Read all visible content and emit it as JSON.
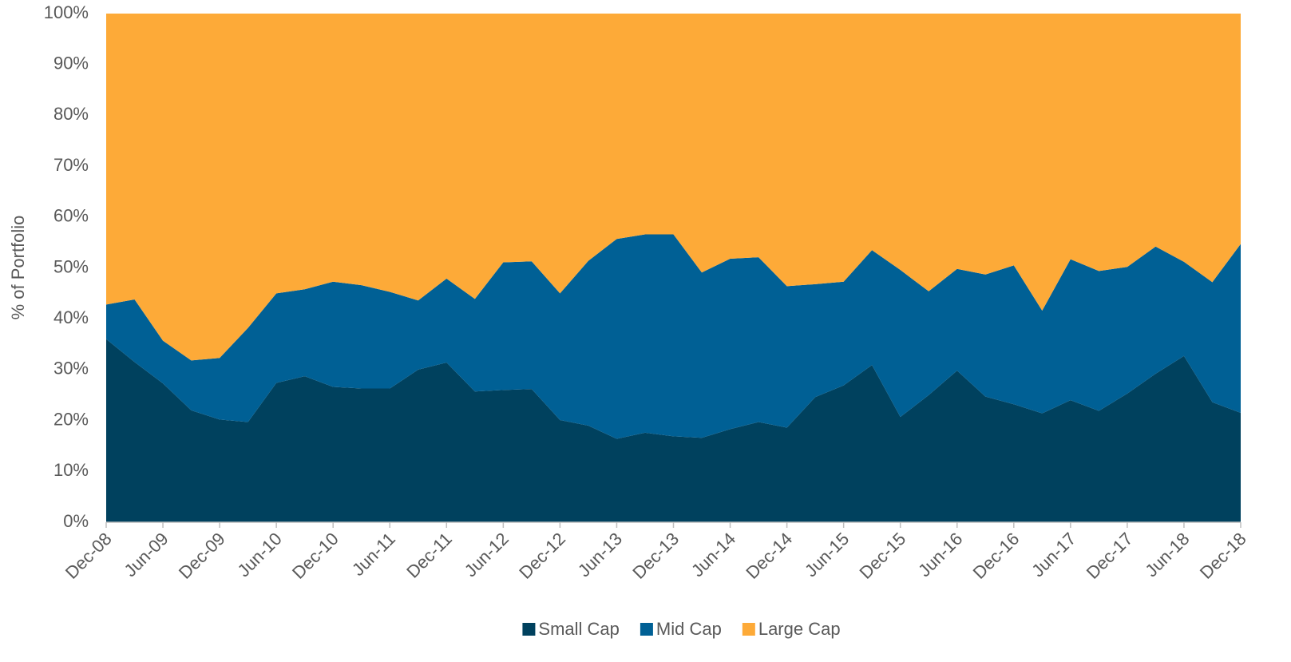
{
  "chart_data": {
    "type": "stacked_area",
    "y_axis_label": "% of Portfolio",
    "categories": [
      "Dec-08",
      null,
      "Jun-09",
      null,
      "Dec-09",
      null,
      "Jun-10",
      null,
      "Dec-10",
      null,
      "Jun-11",
      null,
      "Dec-11",
      null,
      "Jun-12",
      null,
      "Dec-12",
      null,
      "Jun-13",
      null,
      "Dec-13",
      null,
      "Jun-14",
      null,
      "Dec-14",
      null,
      "Jun-15",
      null,
      "Dec-15",
      null,
      "Jun-16",
      null,
      "Dec-16",
      null,
      "Jun-17",
      null,
      "Dec-17",
      null,
      "Jun-18",
      null,
      "Dec-18"
    ],
    "series": [
      {
        "name": "Small Cap",
        "color": "#00415e",
        "values": [
          36,
          31.5,
          27.3,
          22,
          20.2,
          19.7,
          27.4,
          28.7,
          26.6,
          26.3,
          26.3,
          30,
          31.4,
          25.7,
          26,
          26.2,
          20.1,
          19,
          16.4,
          17.6,
          16.9,
          16.6,
          18.3,
          19.7,
          18.6,
          24.6,
          26.9,
          30.9,
          20.7,
          25,
          29.8,
          24.7,
          23.2,
          21.4,
          24,
          21.9,
          25.3,
          29.2,
          32.7,
          23.6,
          21.5
        ]
      },
      {
        "name": "Mid Cap",
        "color": "#006095",
        "values": [
          6.8,
          12.3,
          8.4,
          9.8,
          12.1,
          18.5,
          17.6,
          17.1,
          20.7,
          20.3,
          19,
          13.6,
          16.5,
          18.2,
          25.1,
          25.1,
          24.9,
          32.4,
          39.3,
          39,
          39.7,
          32.5,
          33.5,
          32.4,
          27.8,
          22.2,
          20.4,
          22.6,
          28.9,
          20.4,
          20,
          24,
          27.3,
          20.2,
          27.7,
          27.5,
          24.9,
          25,
          18.5,
          23.6,
          33.2
        ]
      },
      {
        "name": "Large Cap",
        "color": "#fdaa38",
        "values": [
          57.2,
          56.2,
          64.3,
          68.2,
          67.7,
          61.8,
          55,
          54.2,
          52.7,
          53.4,
          54.7,
          56.4,
          52.1,
          56.1,
          48.9,
          48.7,
          55,
          48.6,
          44.3,
          43.4,
          43.4,
          50.9,
          48.2,
          47.9,
          53.6,
          53.2,
          52.7,
          46.5,
          50.4,
          54.6,
          50.2,
          51.3,
          49.5,
          58.4,
          48.3,
          50.6,
          49.8,
          45.8,
          48.8,
          52.8,
          45.3
        ]
      }
    ],
    "ylim": [
      0,
      100
    ],
    "yticks": [
      {
        "value": 0,
        "label": "0%"
      },
      {
        "value": 10,
        "label": "10%"
      },
      {
        "value": 20,
        "label": "20%"
      },
      {
        "value": 30,
        "label": "30%"
      },
      {
        "value": 40,
        "label": "40%"
      },
      {
        "value": 50,
        "label": "50%"
      },
      {
        "value": 60,
        "label": "60%"
      },
      {
        "value": 70,
        "label": "70%"
      },
      {
        "value": 80,
        "label": "80%"
      },
      {
        "value": 90,
        "label": "90%"
      },
      {
        "value": 100,
        "label": "100%"
      }
    ],
    "grid": false,
    "legend": "bottom"
  }
}
